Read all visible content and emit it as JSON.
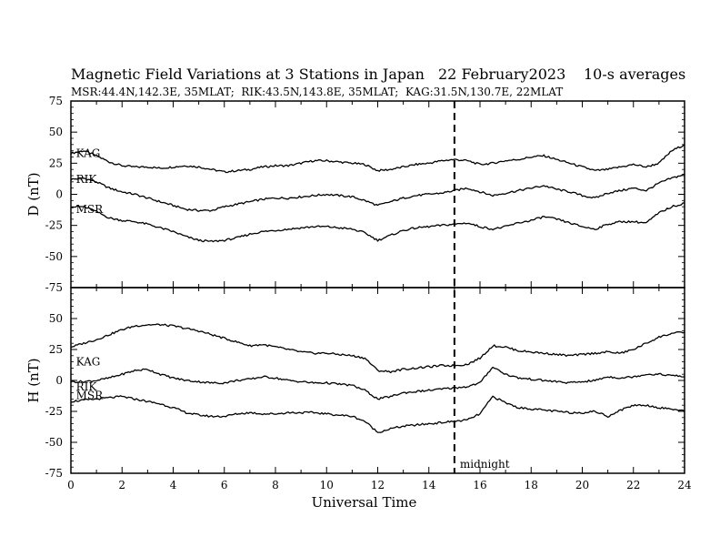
{
  "header": {
    "title": "Magnetic Field Variations at 3 Stations in Japan",
    "date": "22 February2023",
    "averaging": "10-s averages",
    "stations_line": "MSR:44.4N,142.3E, 35MLAT;  RIK:43.5N,143.8E, 35MLAT;  KAG:31.5N,130.7E, 22MLAT"
  },
  "colors": {
    "line": "#000000",
    "background": "#ffffff"
  },
  "chart_data": [
    {
      "type": "line",
      "panel": "D",
      "ylabel": "D (nT)",
      "xlabel": "",
      "xlim": [
        0,
        24
      ],
      "ylim": [
        -75,
        75
      ],
      "yticks": [
        75,
        50,
        25,
        0,
        -25,
        -50,
        -75
      ],
      "ytick_labels": [
        "75",
        "50",
        "25",
        "0",
        "-25",
        "-50",
        "-75"
      ],
      "grid": false,
      "x": [
        0,
        0.5,
        1,
        1.5,
        2,
        2.5,
        3,
        3.5,
        4,
        4.5,
        5,
        5.5,
        6,
        6.5,
        7,
        7.5,
        8,
        8.5,
        9,
        9.5,
        10,
        10.5,
        11,
        11.5,
        12,
        12.5,
        13,
        13.5,
        14,
        14.5,
        15,
        15.5,
        16,
        16.5,
        17,
        17.5,
        18,
        18.5,
        19,
        19.5,
        20,
        20.5,
        21,
        21.5,
        22,
        22.5,
        23,
        23.5,
        24
      ],
      "series": [
        {
          "name": "KAG",
          "values": [
            33,
            35,
            31,
            26,
            23,
            22,
            22,
            21,
            22,
            23,
            22,
            20,
            18,
            19,
            20,
            22,
            23,
            23,
            25,
            27,
            27,
            26,
            25,
            24,
            19,
            20,
            22,
            24,
            25,
            27,
            28,
            27,
            24,
            25,
            27,
            28,
            30,
            31,
            28,
            25,
            22,
            19,
            20,
            22,
            24,
            22,
            25,
            35,
            40
          ]
        },
        {
          "name": "RIK",
          "values": [
            12,
            13,
            10,
            5,
            2,
            0,
            -3,
            -6,
            -9,
            -12,
            -13,
            -13,
            -10,
            -8,
            -6,
            -4,
            -3,
            -3,
            -2,
            -1,
            0,
            -1,
            -2,
            -5,
            -9,
            -6,
            -3,
            -1,
            0,
            1,
            3,
            5,
            2,
            -1,
            1,
            3,
            5,
            7,
            4,
            2,
            -1,
            -3,
            1,
            3,
            5,
            3,
            9,
            13,
            16
          ]
        },
        {
          "name": "MSR",
          "values": [
            -10,
            -10,
            -14,
            -19,
            -21,
            -22,
            -24,
            -27,
            -30,
            -34,
            -37,
            -38,
            -37,
            -35,
            -32,
            -30,
            -29,
            -28,
            -27,
            -26,
            -26,
            -27,
            -28,
            -31,
            -37,
            -33,
            -29,
            -27,
            -26,
            -25,
            -24,
            -23,
            -26,
            -28,
            -26,
            -23,
            -21,
            -18,
            -20,
            -23,
            -26,
            -28,
            -24,
            -22,
            -22,
            -23,
            -15,
            -10,
            -7
          ]
        }
      ],
      "series_label_x": 0.2,
      "series_label_y": [
        33,
        12,
        -12
      ]
    },
    {
      "type": "line",
      "panel": "H",
      "ylabel": "H (nT)",
      "xlabel": "Universal Time",
      "xlim": [
        0,
        24
      ],
      "ylim": [
        -75,
        75
      ],
      "xticks": [
        0,
        2,
        4,
        6,
        8,
        10,
        12,
        14,
        16,
        18,
        20,
        22,
        24
      ],
      "xtick_labels": [
        "0",
        "2",
        "4",
        "6",
        "8",
        "10",
        "12",
        "14",
        "16",
        "18",
        "20",
        "22",
        "24"
      ],
      "yticks": [
        50,
        25,
        0,
        -25,
        -50,
        -75
      ],
      "ytick_labels": [
        "50",
        "25",
        "0",
        "-25",
        "-50",
        "-75"
      ],
      "grid": false,
      "x": [
        0,
        0.5,
        1,
        1.5,
        2,
        2.5,
        3,
        3.5,
        4,
        4.5,
        5,
        5.5,
        6,
        6.5,
        7,
        7.5,
        8,
        8.5,
        9,
        9.5,
        10,
        10.5,
        11,
        11.5,
        12,
        12.5,
        13,
        13.5,
        14,
        14.5,
        15,
        15.5,
        16,
        16.5,
        17,
        17.5,
        18,
        18.5,
        19,
        19.5,
        20,
        20.5,
        21,
        21.5,
        22,
        22.5,
        23,
        23.5,
        24
      ],
      "series": [
        {
          "name": "KAG",
          "values": [
            27,
            30,
            33,
            37,
            41,
            44,
            45,
            45,
            44,
            42,
            40,
            37,
            34,
            31,
            28,
            29,
            27,
            25,
            23,
            22,
            22,
            21,
            20,
            18,
            8,
            7,
            9,
            10,
            11,
            12,
            12,
            13,
            18,
            28,
            27,
            24,
            23,
            22,
            21,
            20,
            21,
            22,
            23,
            22,
            25,
            30,
            35,
            38,
            39
          ]
        },
        {
          "name": "RIK",
          "values": [
            -1,
            -1,
            0,
            2,
            5,
            8,
            9,
            5,
            2,
            0,
            -1,
            -2,
            -2,
            0,
            1,
            3,
            2,
            0,
            -1,
            -2,
            -2,
            -3,
            -4,
            -8,
            -15,
            -13,
            -10,
            -9,
            -8,
            -7,
            -6,
            -5,
            -2,
            11,
            5,
            2,
            1,
            0,
            -1,
            -2,
            -1,
            0,
            3,
            2,
            3,
            5,
            5,
            4,
            3
          ]
        },
        {
          "name": "MSR",
          "values": [
            -17,
            -16,
            -15,
            -14,
            -13,
            -15,
            -17,
            -19,
            -22,
            -26,
            -28,
            -29,
            -29,
            -27,
            -26,
            -27,
            -27,
            -26,
            -26,
            -26,
            -27,
            -28,
            -29,
            -33,
            -42,
            -39,
            -37,
            -36,
            -35,
            -34,
            -33,
            -32,
            -27,
            -13,
            -18,
            -22,
            -23,
            -24,
            -25,
            -26,
            -26,
            -25,
            -29,
            -24,
            -20,
            -20,
            -22,
            -23,
            -25
          ]
        }
      ],
      "series_label_x": 0.2,
      "series_label_y": [
        15,
        -5,
        -12
      ]
    }
  ],
  "annotation": {
    "midnight_x": 15,
    "midnight_label": "midnight"
  }
}
